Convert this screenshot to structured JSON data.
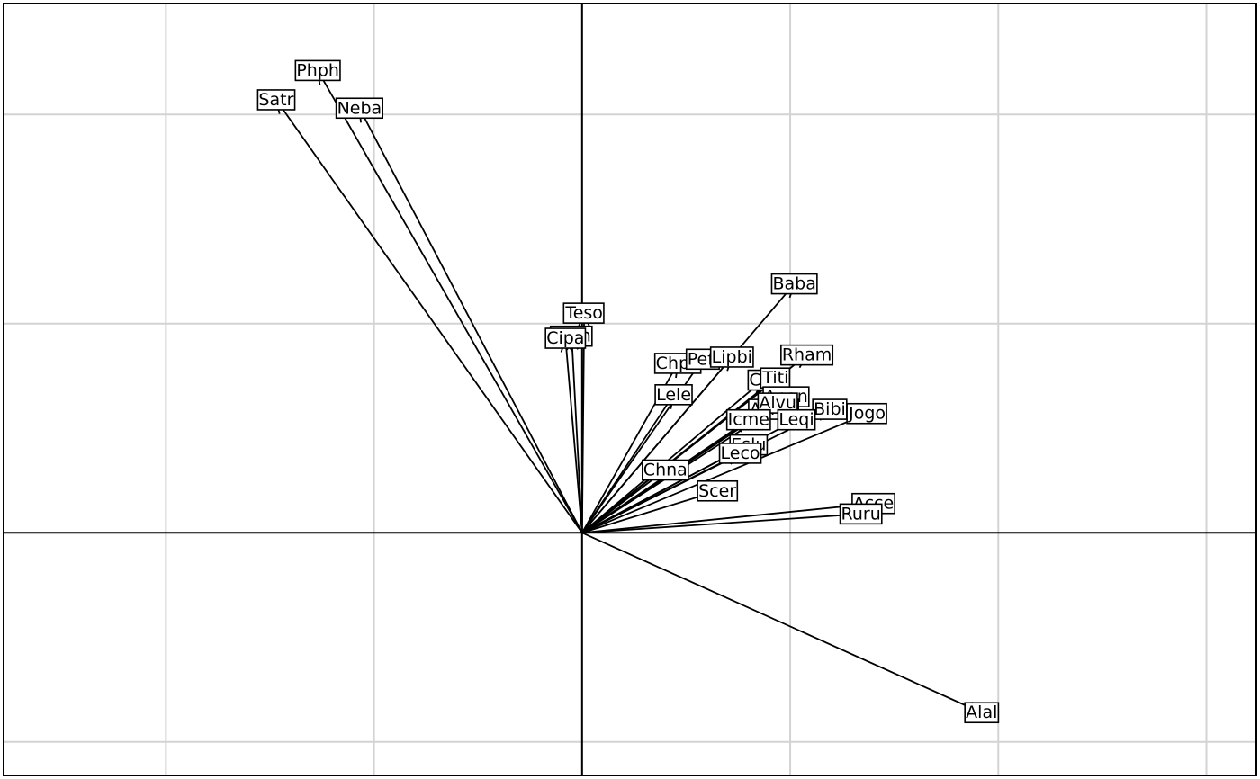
{
  "chart_data": {
    "type": "biplot-arrows",
    "xlim": [
      -2.78,
      3.24
    ],
    "ylim": [
      -1.16,
      2.53
    ],
    "grid_step": 1,
    "grid": true,
    "origin_lines": true,
    "arrows": [
      {
        "label": "Satr",
        "x": -1.47,
        "y": 2.07
      },
      {
        "label": "Phph",
        "x": -1.27,
        "y": 2.21
      },
      {
        "label": "Neba",
        "x": -1.07,
        "y": 2.03
      },
      {
        "label": "Teso",
        "x": 0.01,
        "y": 1.05
      },
      {
        "label": "Thth",
        "x": -0.05,
        "y": 0.94
      },
      {
        "label": "Cipa",
        "x": -0.08,
        "y": 0.93
      },
      {
        "label": "Baba",
        "x": 1.02,
        "y": 1.19
      },
      {
        "label": "Chpa",
        "x": 0.46,
        "y": 0.81
      },
      {
        "label": "Pefl",
        "x": 0.58,
        "y": 0.83
      },
      {
        "label": "Lipbi",
        "x": 0.72,
        "y": 0.84
      },
      {
        "label": "Lele",
        "x": 0.44,
        "y": 0.66
      },
      {
        "label": "Rham",
        "x": 1.08,
        "y": 0.85
      },
      {
        "label": "Citi",
        "x": 0.87,
        "y": 0.73
      },
      {
        "label": "Titi",
        "x": 0.93,
        "y": 0.74
      },
      {
        "label": "Anan",
        "x": 0.98,
        "y": 0.65
      },
      {
        "label": "Acme",
        "x": 0.92,
        "y": 0.59
      },
      {
        "label": "Alvu",
        "x": 0.94,
        "y": 0.62
      },
      {
        "label": "Bibi",
        "x": 1.19,
        "y": 0.59
      },
      {
        "label": "Jogo",
        "x": 1.37,
        "y": 0.57
      },
      {
        "label": "Icme",
        "x": 0.8,
        "y": 0.54
      },
      {
        "label": "Leqi",
        "x": 1.03,
        "y": 0.54
      },
      {
        "label": "Eslu",
        "x": 0.8,
        "y": 0.42
      },
      {
        "label": "Leco",
        "x": 0.76,
        "y": 0.38
      },
      {
        "label": "Chna",
        "x": 0.4,
        "y": 0.3
      },
      {
        "label": "Scer",
        "x": 0.65,
        "y": 0.2
      },
      {
        "label": "Acce",
        "x": 1.4,
        "y": 0.14
      },
      {
        "label": "Ruru",
        "x": 1.34,
        "y": 0.09
      },
      {
        "label": "Alal",
        "x": 1.92,
        "y": -0.86
      }
    ]
  }
}
